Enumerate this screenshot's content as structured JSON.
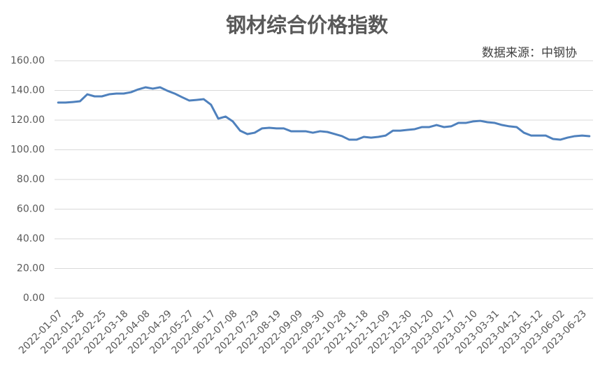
{
  "chart_data": {
    "type": "line",
    "title": "钢材综合价格指数",
    "annotation": "数据来源：中钢协",
    "categories": [
      "2022-01-07",
      null,
      null,
      "2022-01-28",
      null,
      null,
      "2022-02-25",
      null,
      null,
      "2022-03-18",
      null,
      null,
      "2022-04-08",
      null,
      null,
      "2022-04-29",
      null,
      null,
      "2022-05-27",
      null,
      null,
      "2022-06-17",
      null,
      null,
      "2022-07-08",
      null,
      null,
      "2022-07-29",
      null,
      null,
      "2022-08-19",
      null,
      null,
      "2022-09-09",
      null,
      null,
      "2022-09-30",
      null,
      null,
      "2022-10-28",
      null,
      null,
      "2022-11-18",
      null,
      null,
      "2022-12-09",
      null,
      null,
      "2022-12-30",
      null,
      null,
      "2023-01-20",
      null,
      null,
      "2023-02-17",
      null,
      null,
      "2023-03-10",
      null,
      null,
      "2023-03-31",
      null,
      null,
      "2023-04-21",
      null,
      null,
      "2023-05-12",
      null,
      null,
      "2023-06-02",
      null,
      null,
      "2023-06-23",
      null
    ],
    "series": [
      {
        "name": "钢材综合价格指数",
        "color": "#4f81bd",
        "values": [
          131.8,
          131.8,
          132.2,
          132.7,
          137.4,
          136,
          136,
          137.4,
          137.9,
          137.9,
          138.8,
          140.7,
          142.1,
          141.2,
          142.1,
          139.8,
          137.9,
          135.5,
          133.2,
          133.6,
          134.1,
          130.4,
          121,
          122.4,
          119.1,
          112.9,
          110.6,
          111.5,
          114.4,
          114.8,
          114.4,
          114.4,
          112.5,
          112.5,
          112.5,
          111.5,
          112.5,
          112,
          110.6,
          109.2,
          106.8,
          106.8,
          108.7,
          108.2,
          108.7,
          109.6,
          112.9,
          112.9,
          113.4,
          113.9,
          115.3,
          115.3,
          116.7,
          115.3,
          115.8,
          118.1,
          118.1,
          119.1,
          119.5,
          118.6,
          118.1,
          116.7,
          115.8,
          115.3,
          111.5,
          109.6,
          109.6,
          109.6,
          107.3,
          106.8,
          108.2,
          109.2,
          109.6,
          109.2
        ]
      }
    ],
    "ylim": [
      0,
      160
    ],
    "yticks": [
      {
        "value": 0,
        "label": "0.00"
      },
      {
        "value": 20,
        "label": "20.00"
      },
      {
        "value": 40,
        "label": "40.00"
      },
      {
        "value": 60,
        "label": "60.00"
      },
      {
        "value": 80,
        "label": "80.00"
      },
      {
        "value": 100,
        "label": "100.00"
      },
      {
        "value": 120,
        "label": "120.00"
      },
      {
        "value": 140,
        "label": "140.00"
      },
      {
        "value": 160,
        "label": "160.00"
      }
    ],
    "grid": true
  }
}
